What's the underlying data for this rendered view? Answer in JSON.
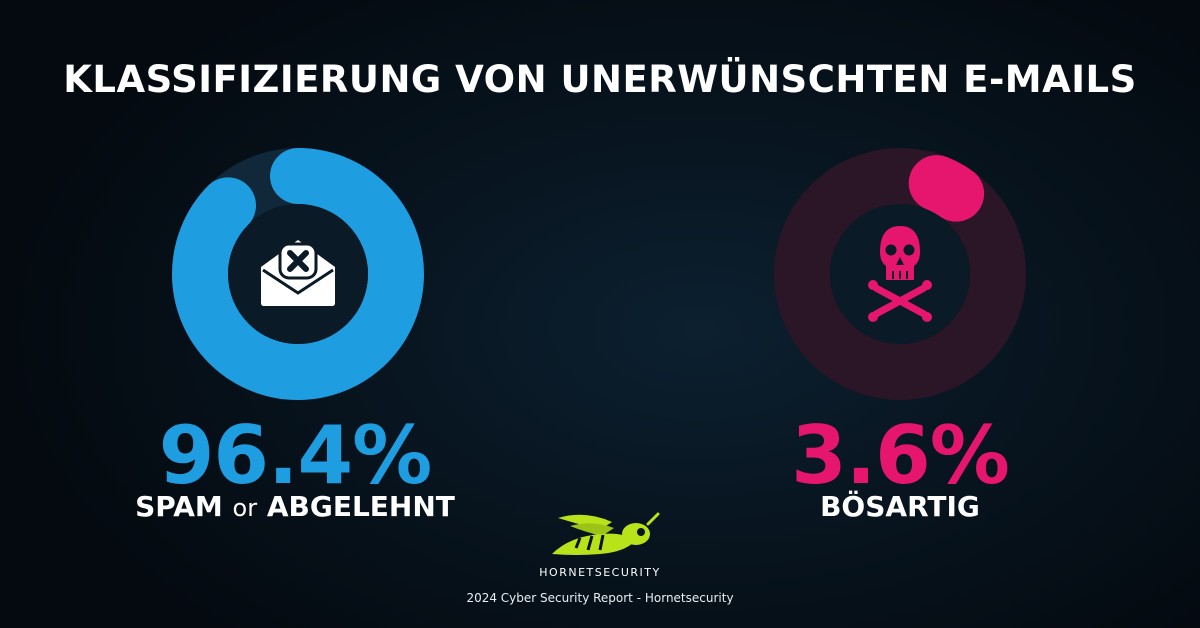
{
  "title": "KLASSIFIZIERUNG VON UNERWÜNSCHTEN E-MAILS",
  "chart_data": [
    {
      "type": "pie",
      "title": "",
      "value": 96.4,
      "unit": "%",
      "value_label": "96.4%",
      "label_parts": [
        "SPAM",
        "or",
        "ABGELEHNT"
      ],
      "color": "#1e9ee0",
      "track_color": "#10283a",
      "icon": "envelope-x-icon"
    },
    {
      "type": "pie",
      "title": "",
      "value": 3.6,
      "unit": "%",
      "value_label": "3.6%",
      "label_parts": [
        "BÖSARTIG"
      ],
      "color": "#e6166e",
      "track_color": "#2a1626",
      "icon": "skull-crossbones-icon"
    }
  ],
  "brand": {
    "name": "HORNETSECURITY",
    "logo_color": "#b8e21a"
  },
  "footer": "2024 Cyber Security Report - Hornetsecurity"
}
